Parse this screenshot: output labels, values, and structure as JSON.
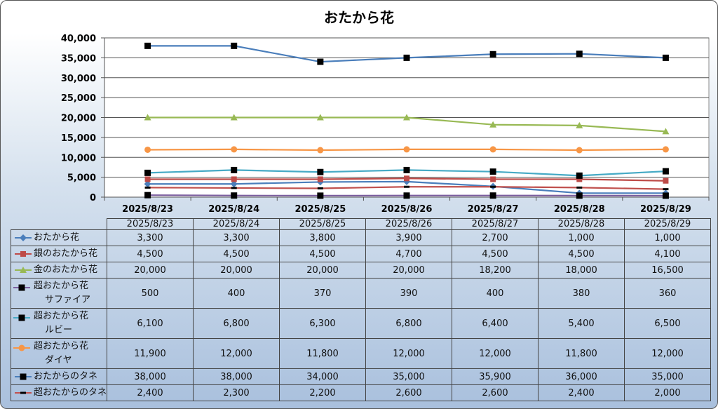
{
  "chart_data": {
    "type": "line",
    "title": "おたから花",
    "categories": [
      "2025/8/23",
      "2025/8/24",
      "2025/8/25",
      "2025/8/26",
      "2025/8/27",
      "2025/8/28",
      "2025/8/29"
    ],
    "ylim": [
      0,
      40000
    ],
    "yticks": [
      "0",
      "5,000",
      "10,000",
      "15,000",
      "20,000",
      "25,000",
      "30,000",
      "35,000",
      "40,000"
    ],
    "grid": true,
    "legend": "data-table",
    "series": [
      {
        "name": "おたから花",
        "values": [
          3300,
          3300,
          3800,
          3900,
          2700,
          1000,
          1000
        ],
        "display": [
          "3,300",
          "3,300",
          "3,800",
          "3,900",
          "2,700",
          "1,000",
          "1,000"
        ],
        "color": "#4a7ebb",
        "marker": "diamond"
      },
      {
        "name": "銀のおたから花",
        "values": [
          4500,
          4500,
          4500,
          4700,
          4500,
          4500,
          4100
        ],
        "display": [
          "4,500",
          "4,500",
          "4,500",
          "4,700",
          "4,500",
          "4,500",
          "4,100"
        ],
        "color": "#be4b48",
        "marker": "square"
      },
      {
        "name": "金のおたから花",
        "values": [
          20000,
          20000,
          20000,
          20000,
          18200,
          18000,
          16500
        ],
        "display": [
          "20,000",
          "20,000",
          "20,000",
          "20,000",
          "18,200",
          "18,000",
          "16,500"
        ],
        "color": "#98b954",
        "marker": "triangle"
      },
      {
        "name": "超おたから花",
        "name2": "サファイア",
        "values": [
          500,
          400,
          370,
          390,
          400,
          380,
          360
        ],
        "display": [
          "500",
          "400",
          "370",
          "390",
          "400",
          "380",
          "360"
        ],
        "color": "#7d60a0",
        "marker": "blacksquare"
      },
      {
        "name": "超おたから花",
        "name2": "ルビー",
        "values": [
          6100,
          6800,
          6300,
          6800,
          6400,
          5400,
          6500
        ],
        "display": [
          "6,100",
          "6,800",
          "6,300",
          "6,800",
          "6,400",
          "5,400",
          "6,500"
        ],
        "color": "#46aac5",
        "marker": "blacksquare"
      },
      {
        "name": "超おたから花",
        "name2": "ダイヤ",
        "values": [
          11900,
          12000,
          11800,
          12000,
          12000,
          11800,
          12000
        ],
        "display": [
          "11,900",
          "12,000",
          "11,800",
          "12,000",
          "12,000",
          "11,800",
          "12,000"
        ],
        "color": "#f79646",
        "marker": "circle"
      },
      {
        "name": "おたからのタネ",
        "values": [
          38000,
          38000,
          34000,
          35000,
          35900,
          36000,
          35000
        ],
        "display": [
          "38,000",
          "38,000",
          "34,000",
          "35,000",
          "35,900",
          "36,000",
          "35,000"
        ],
        "color": "#4a7ebb",
        "marker": "blacksquare"
      },
      {
        "name": "超おたからのタネ",
        "values": [
          2400,
          2300,
          2200,
          2600,
          2600,
          2400,
          2000
        ],
        "display": [
          "2,400",
          "2,300",
          "2,200",
          "2,600",
          "2,600",
          "2,400",
          "2,000"
        ],
        "color": "#c0504d",
        "marker": "dash"
      }
    ]
  }
}
